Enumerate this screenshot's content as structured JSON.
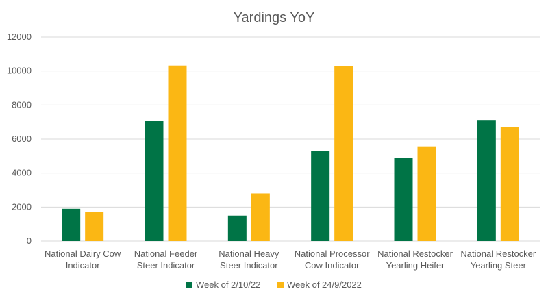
{
  "chart_data": {
    "type": "bar",
    "title": "Yardings YoY",
    "categories": [
      [
        "National Dairy Cow",
        "Indicator"
      ],
      [
        "National Feeder",
        "Steer Indicator"
      ],
      [
        "National Heavy",
        "Steer Indicator"
      ],
      [
        "National Processor",
        "Cow Indicator"
      ],
      [
        "National Restocker",
        "Yearling Heifer"
      ],
      [
        "National Restocker",
        "Yearling Steer"
      ]
    ],
    "series": [
      {
        "name": "Week of 2/10/22",
        "color": "#007446",
        "values": [
          1900,
          7050,
          1500,
          5300,
          4880,
          7120
        ]
      },
      {
        "name": "Week of 24/9/2022",
        "color": "#FBB714",
        "values": [
          1720,
          10320,
          2800,
          10270,
          5570,
          6720
        ]
      }
    ],
    "ylim": [
      0,
      12000
    ],
    "yticks": [
      0,
      2000,
      4000,
      6000,
      8000,
      10000,
      12000
    ],
    "grid": true,
    "legend": "bottom"
  }
}
